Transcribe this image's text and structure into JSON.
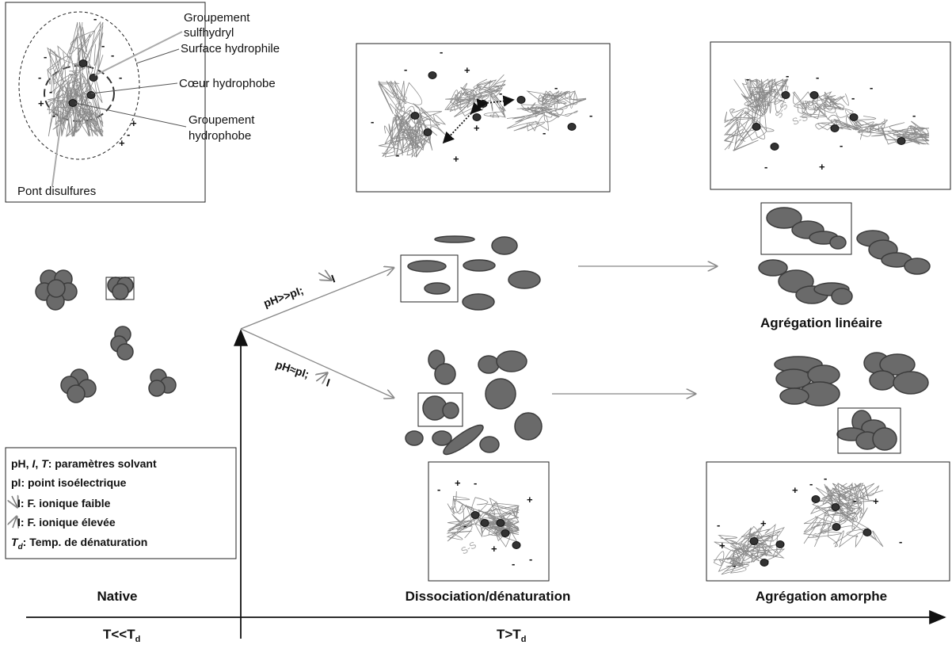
{
  "native_inset": {
    "sulfhydryl": [
      "Groupement",
      "sulfhydryl"
    ],
    "surface": "Surface hydrophile",
    "core": "Cœur hydrophobe",
    "hydrophobic": [
      "Groupement",
      "hydrophobe"
    ],
    "disulfide": "Pont disulfures"
  },
  "signs": {
    "plus": "+",
    "minus": "-",
    "ss": "S-S"
  },
  "pathways": {
    "high": {
      "label": "pH>>pI;",
      "ionic": "I"
    },
    "low": {
      "label": "pH≈pI;",
      "ionic": "I"
    }
  },
  "stages": {
    "native": "Native",
    "dissociation": "Dissociation/dénaturation",
    "linear": "Agrégation linéaire",
    "amorphous": "Agrégation amorphe"
  },
  "axis": {
    "below": {
      "text": "T<<T",
      "sub": "d"
    },
    "above": {
      "text": "T>T",
      "sub": "d"
    }
  },
  "legend": {
    "solvent": [
      "pH, ",
      "I",
      ",  ",
      "T",
      ": paramètres solvant"
    ],
    "pi": "pI: point isoélectrique",
    "low": "I: F. ionique faible",
    "high": "I: F. ionique élevée",
    "td": [
      "T",
      "d",
      ": Temp. de dénaturation"
    ]
  }
}
